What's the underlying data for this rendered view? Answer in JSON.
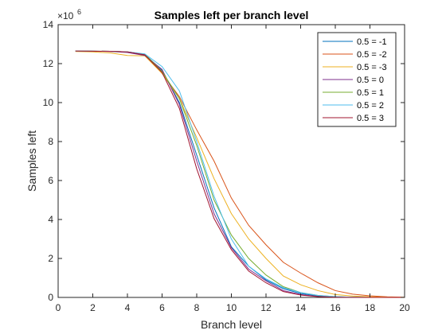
{
  "chart_data": {
    "type": "line",
    "title": "Samples left per branch level",
    "xlabel": "Branch level",
    "ylabel": "Samples left",
    "xlim": [
      0,
      20
    ],
    "ylim": [
      0,
      14
    ],
    "y_exponent_label": "×10",
    "y_exponent_power": "6",
    "x_ticks": [
      0,
      2,
      4,
      6,
      8,
      10,
      12,
      14,
      16,
      18,
      20
    ],
    "y_ticks": [
      0,
      2,
      4,
      6,
      8,
      10,
      12,
      14
    ],
    "grid": false,
    "legend_position": "top-right",
    "x": [
      1,
      2,
      3,
      4,
      5,
      6,
      7,
      8,
      9,
      10,
      11,
      12,
      13,
      14,
      15,
      16,
      17,
      18,
      19,
      20
    ],
    "series": [
      {
        "name": "0.5 = -1",
        "color": "#0072BD",
        "values": [
          12.65,
          12.64,
          12.63,
          12.6,
          12.48,
          11.65,
          10.0,
          7.3,
          4.6,
          2.6,
          1.6,
          0.9,
          0.45,
          0.2,
          0.08,
          0.03,
          0.01,
          0.0,
          0.0,
          0.0
        ]
      },
      {
        "name": "0.5 = -2",
        "color": "#D95319",
        "values": [
          12.65,
          12.64,
          12.63,
          12.6,
          12.48,
          11.5,
          10.3,
          8.6,
          7.0,
          5.1,
          3.7,
          2.7,
          1.8,
          1.25,
          0.75,
          0.35,
          0.17,
          0.08,
          0.03,
          0.01
        ]
      },
      {
        "name": "0.5 = -3",
        "color": "#EDB120",
        "values": [
          12.62,
          12.6,
          12.55,
          12.42,
          12.4,
          11.5,
          10.2,
          8.2,
          6.1,
          4.3,
          3.0,
          2.0,
          1.1,
          0.65,
          0.35,
          0.15,
          0.07,
          0.03,
          0.01,
          0.0
        ]
      },
      {
        "name": "0.5 = 0",
        "color": "#7E2F8E",
        "values": [
          12.65,
          12.64,
          12.62,
          12.57,
          12.42,
          11.7,
          9.9,
          7.0,
          4.3,
          2.55,
          1.45,
          0.85,
          0.35,
          0.15,
          0.05,
          0.02,
          0.01,
          0.0,
          0.0,
          0.0
        ]
      },
      {
        "name": "0.5 = 1",
        "color": "#77AC30",
        "values": [
          12.65,
          12.64,
          12.63,
          12.6,
          12.48,
          11.6,
          10.2,
          7.8,
          5.0,
          3.2,
          2.0,
          1.15,
          0.55,
          0.25,
          0.1,
          0.04,
          0.01,
          0.0,
          0.0,
          0.0
        ]
      },
      {
        "name": "0.5 = 2",
        "color": "#4DBEEE",
        "values": [
          12.65,
          12.64,
          12.63,
          12.6,
          12.5,
          11.85,
          10.6,
          8.0,
          5.2,
          3.0,
          1.6,
          0.95,
          0.5,
          0.25,
          0.1,
          0.04,
          0.01,
          0.0,
          0.0,
          0.0
        ]
      },
      {
        "name": "0.5 = 3",
        "color": "#A2142F",
        "values": [
          12.65,
          12.64,
          12.63,
          12.6,
          12.45,
          11.55,
          9.7,
          6.6,
          4.05,
          2.45,
          1.35,
          0.75,
          0.3,
          0.12,
          0.04,
          0.01,
          0.0,
          0.0,
          0.0,
          0.0
        ]
      }
    ]
  }
}
